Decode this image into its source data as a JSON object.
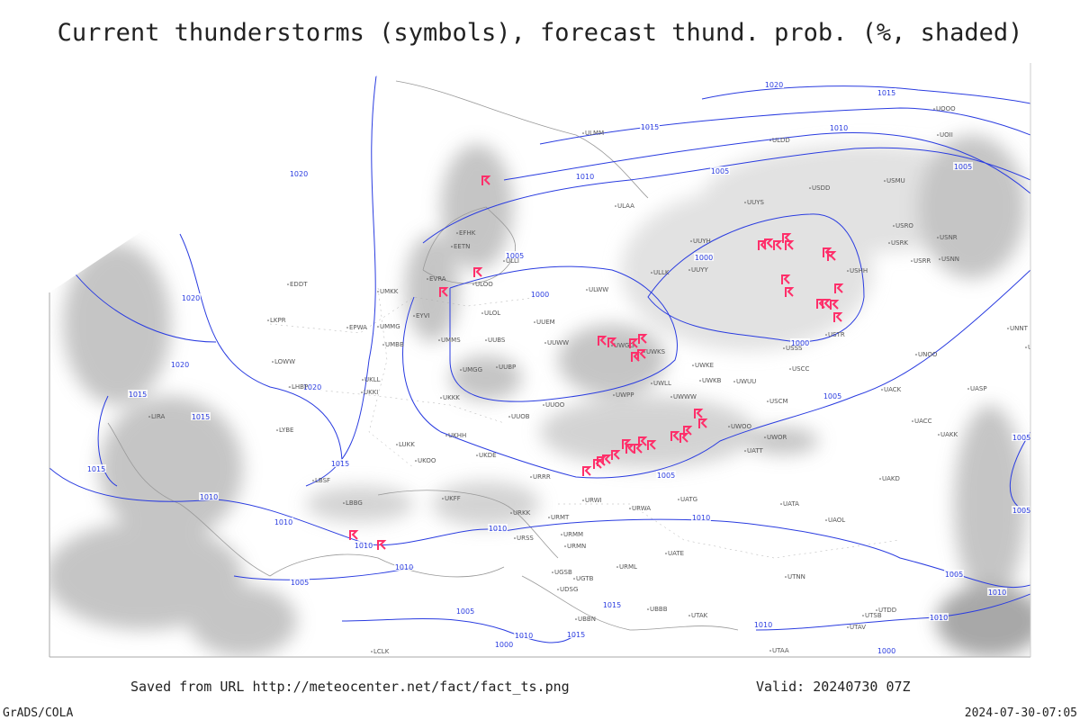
{
  "title": "Current thunderstorms (symbols), forecast thund. prob. (%, shaded)",
  "footer": {
    "saved": "Saved from URL http://meteocenter.net/fact/fact_ts.png",
    "valid": "Valid: 20240730 07Z",
    "software": "GrADS/COLA",
    "timestamp": "2024-07-30-07:05"
  },
  "isobar_labels": [
    "1020",
    "1015",
    "1015",
    "1010",
    "1010",
    "1005",
    "1005",
    "1020",
    "1005",
    "1000",
    "1000",
    "1000",
    "1020",
    "1020",
    "1020",
    "1015",
    "1015",
    "1015",
    "1015",
    "1010",
    "1010",
    "1010",
    "1010",
    "1010",
    "1010",
    "1005",
    "1005",
    "1005",
    "1005",
    "1005",
    "1005",
    "1000",
    "1010",
    "1015",
    "1015",
    "1010",
    "1010",
    "1000",
    "1005",
    "1010"
  ],
  "stations": [
    "ULLI",
    "UUEM",
    "UUWW",
    "UUOO",
    "UUOB",
    "UKKK",
    "ULOL",
    "UMMS",
    "UMGG",
    "UUBP",
    "ULOO",
    "EVRA",
    "UMKK",
    "EYVI",
    "UMMG",
    "UMBB",
    "EPWA",
    "UKLL",
    "UKKI",
    "LUKK",
    "UKOO",
    "UKHH",
    "URRR",
    "URKK",
    "URWI",
    "URMT",
    "URMM",
    "URMN",
    "URSS",
    "URML",
    "UGTB",
    "UGSB",
    "UDSG",
    "UBBN",
    "UBBB",
    "UTAK",
    "UATE",
    "UATG",
    "URWA",
    "UATA",
    "UAOL",
    "UACC",
    "UAKK",
    "UAKD",
    "UWOO",
    "UWOR",
    "UATT",
    "USCM",
    "USCC",
    "UWKE",
    "UWKB",
    "UWUU",
    "UWWW",
    "UWLL",
    "UWPP",
    "UWGG",
    "UWKS",
    "USSS",
    "USTR",
    "USHH",
    "USRR",
    "USNN",
    "USRK",
    "USNR",
    "USRO",
    "USMU",
    "USDD",
    "UUYS",
    "UUYH",
    "UUYY",
    "ULLK",
    "ULWW",
    "ULAA",
    "ULMM",
    "UNOO",
    "UACK",
    "UASP",
    "UNNT",
    "UNBB",
    "UOOO",
    "UOII",
    "ULDD",
    "UTAA",
    "UTAV",
    "UTSB",
    "UTDD",
    "UTNN",
    "EFHK",
    "EETN",
    "LKPR",
    "EDDT",
    "LHBP",
    "LYBE",
    "LBSF",
    "LBBG",
    "LIRA",
    "LCLK",
    "LOWW",
    "UKFF",
    "UKDE",
    "UUBS"
  ]
}
